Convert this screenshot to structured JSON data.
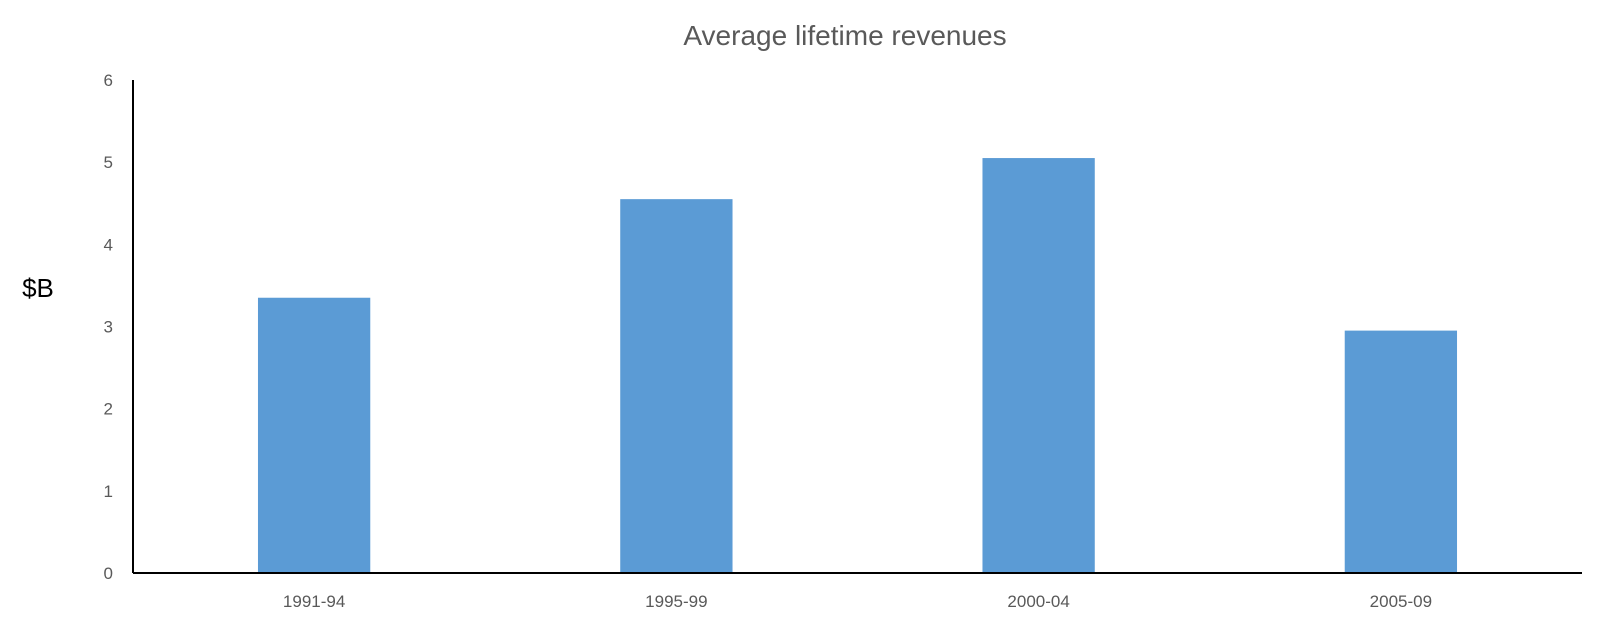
{
  "chart_data": {
    "type": "bar",
    "title": "Average lifetime revenues",
    "xlabel": "",
    "ylabel": "$B",
    "categories": [
      "1991-94",
      "1995-99",
      "2000-04",
      "2005-09"
    ],
    "values": [
      3.35,
      4.55,
      5.05,
      2.95
    ],
    "ylim": [
      0,
      6
    ],
    "yticks": [
      "0",
      "1",
      "2",
      "3",
      "4",
      "5",
      "6"
    ],
    "grid": false,
    "legend": "none",
    "colors": {
      "bar": "#5B9BD5",
      "axis": "#000000",
      "text": "#595959"
    }
  }
}
